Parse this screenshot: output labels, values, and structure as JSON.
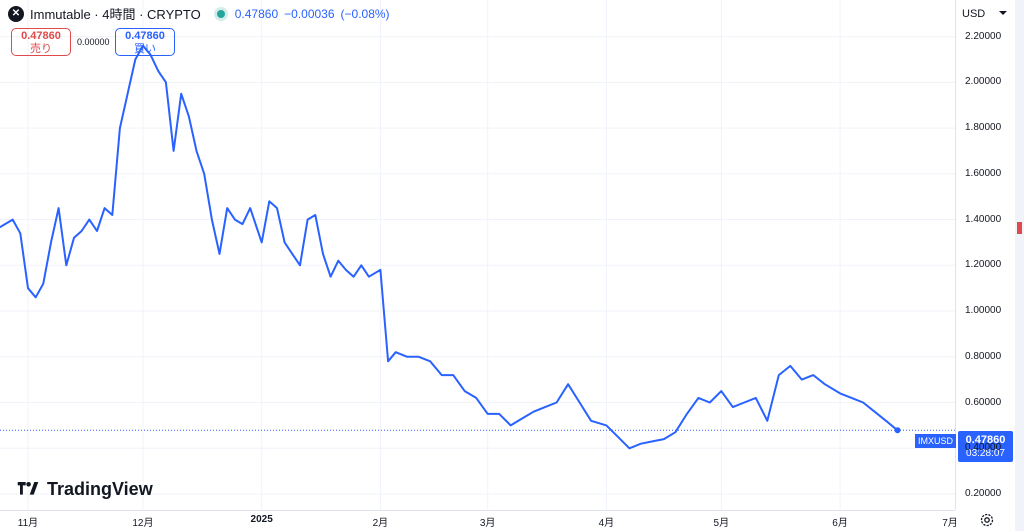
{
  "header": {
    "logo_icon": "immutable-x-icon",
    "title": "Immutable · 4時間 · CRYPTO",
    "status_icon": "market-open-dot",
    "last_price": "0.47860",
    "change": "−0.00036",
    "change_pct": "(−0.08%)"
  },
  "trade": {
    "sell_price": "0.47860",
    "sell_label": "売り",
    "spread": "0.00000",
    "buy_price": "0.47860",
    "buy_label": "買い"
  },
  "currency_label": "USD",
  "price_tag": {
    "symbol": "IMXUSD",
    "value": "0.47860",
    "countdown": "03:28:07"
  },
  "brand": {
    "name": "TradingView",
    "icon": "tradingview-logo-icon"
  },
  "settings_icon": "gear-icon",
  "colors": {
    "line": "#2962ff",
    "sell": "#e04a4a",
    "buy": "#2962ff",
    "grid": "#f0f3fa"
  },
  "chart_data": {
    "type": "line",
    "title": "Immutable · 4時間 · CRYPTO",
    "xlabel": "",
    "ylabel": "",
    "ylim": [
      0.13,
      2.36
    ],
    "y_ticks": [
      "2.20000",
      "2.00000",
      "1.80000",
      "1.60000",
      "1.40000",
      "1.20000",
      "1.00000",
      "0.80000",
      "0.60000",
      "0.40000",
      "0.20000"
    ],
    "x_ticks": [
      {
        "label": "11月",
        "date": "2024-11-01",
        "bold": false
      },
      {
        "label": "12月",
        "date": "2024-12-01",
        "bold": false
      },
      {
        "label": "2025",
        "date": "2025-01-01",
        "bold": true
      },
      {
        "label": "2月",
        "date": "2025-02-01",
        "bold": false
      },
      {
        "label": "3月",
        "date": "2025-03-01",
        "bold": false
      },
      {
        "label": "4月",
        "date": "2025-04-01",
        "bold": false
      },
      {
        "label": "5月",
        "date": "2025-05-01",
        "bold": false
      },
      {
        "label": "6月",
        "date": "2025-06-01",
        "bold": false
      },
      {
        "label": "7月",
        "date": "2025-07-01",
        "bold": false
      }
    ],
    "last_value": 0.4786,
    "grid": true,
    "series": [
      {
        "x": [
          "2024-10-22",
          "2024-10-24",
          "2024-10-26",
          "2024-10-28",
          "2024-10-30",
          "2024-11-01",
          "2024-11-03",
          "2024-11-05",
          "2024-11-07",
          "2024-11-09",
          "2024-11-11",
          "2024-11-13",
          "2024-11-15",
          "2024-11-17",
          "2024-11-19",
          "2024-11-21",
          "2024-11-23",
          "2024-11-25",
          "2024-11-27",
          "2024-11-29",
          "2024-12-01",
          "2024-12-03",
          "2024-12-05",
          "2024-12-07",
          "2024-12-09",
          "2024-12-11",
          "2024-12-13",
          "2024-12-15",
          "2024-12-17",
          "2024-12-19",
          "2024-12-21",
          "2024-12-23",
          "2024-12-25",
          "2024-12-27",
          "2024-12-29",
          "2025-01-01",
          "2025-01-03",
          "2025-01-05",
          "2025-01-07",
          "2025-01-09",
          "2025-01-11",
          "2025-01-13",
          "2025-01-15",
          "2025-01-17",
          "2025-01-19",
          "2025-01-21",
          "2025-01-23",
          "2025-01-25",
          "2025-01-27",
          "2025-01-29",
          "2025-02-01",
          "2025-02-03",
          "2025-02-05",
          "2025-02-08",
          "2025-02-11",
          "2025-02-14",
          "2025-02-17",
          "2025-02-20",
          "2025-02-23",
          "2025-02-26",
          "2025-03-01",
          "2025-03-04",
          "2025-03-07",
          "2025-03-10",
          "2025-03-13",
          "2025-03-16",
          "2025-03-19",
          "2025-03-22",
          "2025-03-25",
          "2025-03-28",
          "2025-04-01",
          "2025-04-04",
          "2025-04-07",
          "2025-04-10",
          "2025-04-13",
          "2025-04-16",
          "2025-04-19",
          "2025-04-22",
          "2025-04-25",
          "2025-04-28",
          "2025-05-01",
          "2025-05-04",
          "2025-05-07",
          "2025-05-10",
          "2025-05-13",
          "2025-05-16",
          "2025-05-19",
          "2025-05-22",
          "2025-05-25",
          "2025-05-28",
          "2025-06-01",
          "2025-06-04",
          "2025-06-07",
          "2025-06-10",
          "2025-06-13",
          "2025-06-16"
        ],
        "y": [
          1.42,
          1.36,
          1.38,
          1.4,
          1.34,
          1.1,
          1.06,
          1.12,
          1.3,
          1.45,
          1.2,
          1.32,
          1.35,
          1.4,
          1.35,
          1.45,
          1.42,
          1.8,
          1.95,
          2.1,
          2.16,
          2.12,
          2.05,
          2.0,
          1.7,
          1.95,
          1.85,
          1.7,
          1.6,
          1.4,
          1.25,
          1.45,
          1.4,
          1.38,
          1.45,
          1.3,
          1.48,
          1.45,
          1.3,
          1.25,
          1.2,
          1.4,
          1.42,
          1.25,
          1.15,
          1.22,
          1.18,
          1.15,
          1.2,
          1.15,
          1.18,
          0.78,
          0.82,
          0.8,
          0.8,
          0.78,
          0.72,
          0.72,
          0.65,
          0.62,
          0.55,
          0.55,
          0.5,
          0.53,
          0.56,
          0.58,
          0.6,
          0.68,
          0.6,
          0.52,
          0.5,
          0.45,
          0.4,
          0.42,
          0.43,
          0.44,
          0.47,
          0.55,
          0.62,
          0.6,
          0.65,
          0.58,
          0.6,
          0.62,
          0.52,
          0.72,
          0.76,
          0.7,
          0.72,
          0.68,
          0.64,
          0.62,
          0.6,
          0.56,
          0.52,
          0.4786
        ]
      }
    ]
  }
}
